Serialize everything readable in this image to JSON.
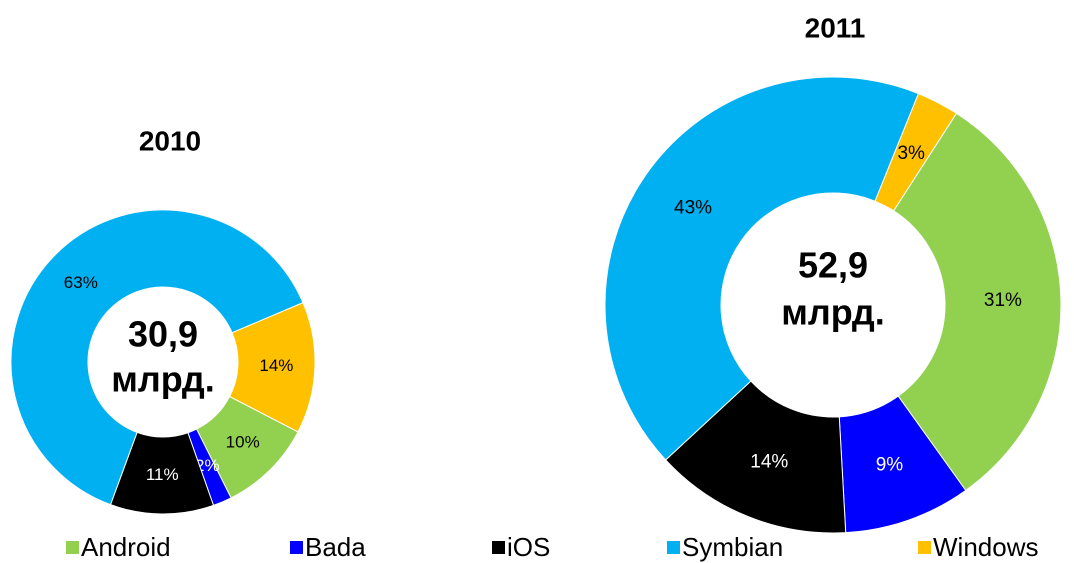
{
  "chart_data": [
    {
      "type": "pie",
      "title": "2010",
      "annotations": [
        "30,9",
        "млрд."
      ],
      "categories": [
        "Android",
        "Bada",
        "iOS",
        "Symbian",
        "Windows"
      ],
      "values": [
        10,
        2,
        11,
        63,
        14
      ],
      "value_labels": [
        "10%",
        "2%",
        "11%",
        "63%",
        "14%"
      ],
      "colors": [
        "#92d050",
        "#0000ff",
        "#000000",
        "#00b0f0",
        "#ffc000"
      ]
    },
    {
      "type": "pie",
      "title": "2011",
      "annotations": [
        "52,9",
        "млрд."
      ],
      "categories": [
        "Android",
        "Bada",
        "iOS",
        "Symbian",
        "Windows"
      ],
      "values": [
        31,
        9,
        14,
        43,
        3
      ],
      "value_labels": [
        "31%",
        "9%",
        "14%",
        "43%",
        "3%"
      ],
      "colors": [
        "#92d050",
        "#0000ff",
        "#000000",
        "#00b0f0",
        "#ffc000"
      ]
    }
  ]
}
